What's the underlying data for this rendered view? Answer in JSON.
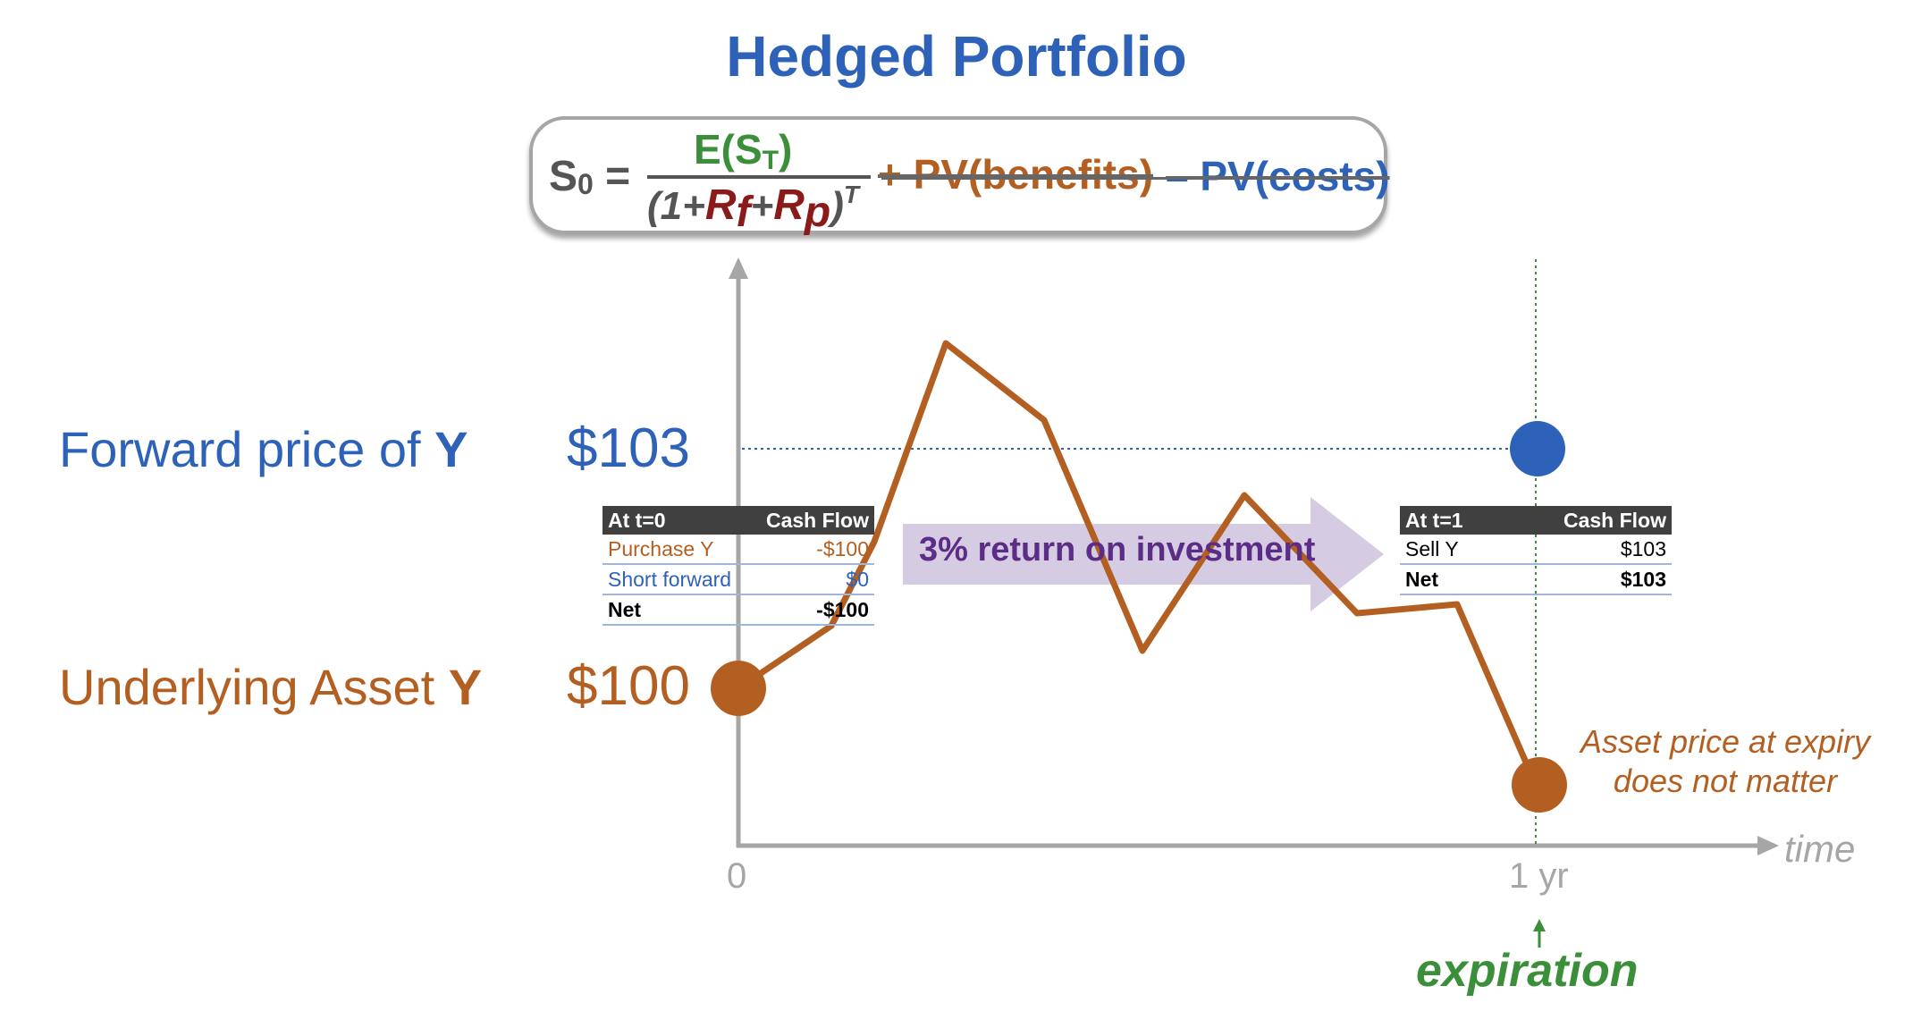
{
  "title": "Hedged Portfolio",
  "formula": {
    "lhs_s": "S",
    "lhs_sub": "0",
    "equals": "=",
    "numerator_e": "E(S",
    "numerator_sub": "T",
    "numerator_close": ")",
    "den_open": "(1+",
    "den_rf": "R",
    "den_rf_sub": "f",
    "den_plus": "+",
    "den_rp": "R",
    "den_rp_sub": "p",
    "den_close": ")",
    "den_exp": "T",
    "benefits": "+ PV(benefits)",
    "costs": "– PV(costs)"
  },
  "labels": {
    "forward_text": "Forward price of ",
    "forward_y": "Y",
    "forward_price": "$103",
    "underlying_text": "Underlying Asset ",
    "underlying_y": "Y",
    "underlying_price": "$100"
  },
  "axis": {
    "tick_start": "0",
    "tick_end": "1 yr",
    "x_label": "time"
  },
  "expiration_label": "expiration",
  "expiry_note": "Asset price at expiry does not matter",
  "return_label": "3% return on investment",
  "table_t0": {
    "header_left": "At t=0",
    "header_right": "Cash Flow",
    "rows": [
      {
        "label": "Purchase Y",
        "value": "-$100"
      },
      {
        "label": "Short forward",
        "value": "$0"
      }
    ],
    "net_label": "Net",
    "net_value": "-$100"
  },
  "table_t1": {
    "header_left": "At t=1",
    "header_right": "Cash Flow",
    "rows": [
      {
        "label": "Sell Y",
        "value": "$103"
      }
    ],
    "net_label": "Net",
    "net_value": "$103"
  },
  "colors": {
    "blue": "#2e62b8",
    "orange": "#b45f22",
    "green": "#3b8f3b",
    "purple_arrow": "#d5cce3",
    "axis_gray": "#a6a6a6"
  }
}
